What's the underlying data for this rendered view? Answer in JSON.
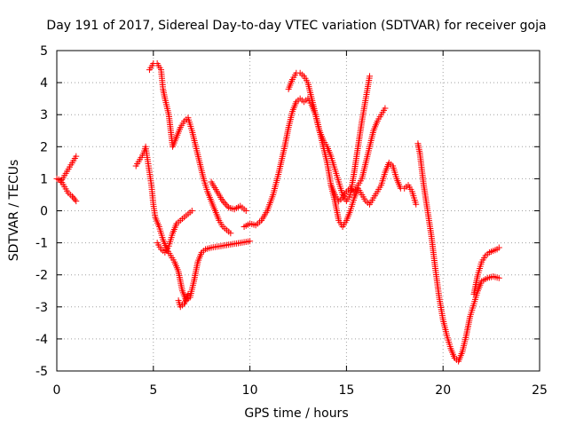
{
  "chart_data": {
    "type": "scatter",
    "title": "Day 191 of 2017, Sidereal Day-to-day VTEC variation (SDTVAR) for receiver goja",
    "xlabel": "GPS time / hours",
    "ylabel": "SDTVAR / TECUs",
    "xlim": [
      0,
      25
    ],
    "ylim": [
      -5,
      5
    ],
    "xticks": [
      "0",
      "5",
      "10",
      "15",
      "20",
      "25"
    ],
    "yticks": [
      "-5",
      "-4",
      "-3",
      "-2",
      "-1",
      "0",
      "1",
      "2",
      "3",
      "4",
      "5"
    ],
    "grid": true,
    "marker": "+",
    "color": "#ff0000",
    "series": [
      {
        "points": [
          [
            0,
            1.0
          ],
          [
            0.2,
            0.95
          ],
          [
            0.4,
            0.75
          ],
          [
            0.6,
            0.55
          ],
          [
            0.8,
            0.45
          ],
          [
            1.0,
            0.3
          ]
        ]
      },
      {
        "points": [
          [
            0.2,
            0.9
          ],
          [
            0.4,
            1.1
          ],
          [
            0.6,
            1.3
          ],
          [
            0.8,
            1.5
          ],
          [
            1.0,
            1.7
          ]
        ]
      },
      {
        "points": [
          [
            4.1,
            1.4
          ],
          [
            4.3,
            1.6
          ],
          [
            4.5,
            1.8
          ],
          [
            4.6,
            2.0
          ],
          [
            4.7,
            1.6
          ],
          [
            4.8,
            1.2
          ],
          [
            4.9,
            0.8
          ],
          [
            5.0,
            0.2
          ],
          [
            5.1,
            -0.2
          ],
          [
            5.3,
            -0.5
          ],
          [
            5.5,
            -0.9
          ],
          [
            5.7,
            -1.2
          ],
          [
            5.9,
            -1.4
          ],
          [
            6.1,
            -1.6
          ],
          [
            6.3,
            -1.9
          ],
          [
            6.5,
            -2.5
          ],
          [
            6.7,
            -2.8
          ],
          [
            6.9,
            -2.7
          ],
          [
            7.1,
            -2.2
          ],
          [
            7.3,
            -1.6
          ],
          [
            7.5,
            -1.3
          ],
          [
            7.7,
            -1.2
          ],
          [
            8.0,
            -1.15
          ],
          [
            8.5,
            -1.1
          ],
          [
            9.0,
            -1.05
          ],
          [
            9.5,
            -1.0
          ],
          [
            10.0,
            -0.95
          ]
        ]
      },
      {
        "points": [
          [
            4.8,
            4.4
          ],
          [
            5.0,
            4.6
          ],
          [
            5.2,
            4.6
          ],
          [
            5.4,
            4.4
          ],
          [
            5.5,
            3.8
          ],
          [
            5.6,
            3.5
          ],
          [
            5.8,
            3.0
          ],
          [
            5.9,
            2.5
          ],
          [
            6.0,
            2.0
          ],
          [
            6.2,
            2.3
          ],
          [
            6.4,
            2.6
          ],
          [
            6.6,
            2.8
          ],
          [
            6.8,
            2.9
          ],
          [
            7.0,
            2.5
          ],
          [
            7.2,
            2.0
          ],
          [
            7.4,
            1.5
          ],
          [
            7.6,
            1.0
          ],
          [
            7.8,
            0.6
          ],
          [
            8.0,
            0.3
          ],
          [
            8.2,
            0.0
          ],
          [
            8.4,
            -0.3
          ],
          [
            8.6,
            -0.5
          ],
          [
            8.8,
            -0.6
          ],
          [
            9.0,
            -0.7
          ]
        ]
      },
      {
        "points": [
          [
            5.2,
            -1.0
          ],
          [
            5.4,
            -1.2
          ],
          [
            5.6,
            -1.3
          ],
          [
            5.8,
            -1.1
          ],
          [
            6.0,
            -0.7
          ],
          [
            6.2,
            -0.4
          ],
          [
            6.4,
            -0.3
          ],
          [
            6.6,
            -0.2
          ],
          [
            6.8,
            -0.1
          ],
          [
            7.0,
            0.0
          ],
          [
            6.3,
            -2.8
          ],
          [
            6.4,
            -3.0
          ],
          [
            6.6,
            -2.9
          ],
          [
            6.8,
            -2.6
          ]
        ]
      },
      {
        "points": [
          [
            8.0,
            0.9
          ],
          [
            8.3,
            0.6
          ],
          [
            8.6,
            0.3
          ],
          [
            8.9,
            0.1
          ],
          [
            9.2,
            0.05
          ],
          [
            9.5,
            0.15
          ],
          [
            9.8,
            0.0
          ]
        ]
      },
      {
        "points": [
          [
            9.7,
            -0.5
          ],
          [
            10.0,
            -0.4
          ],
          [
            10.3,
            -0.45
          ],
          [
            10.6,
            -0.3
          ],
          [
            10.9,
            0.0
          ],
          [
            11.2,
            0.5
          ],
          [
            11.5,
            1.2
          ],
          [
            11.8,
            2.0
          ],
          [
            12.0,
            2.6
          ],
          [
            12.2,
            3.1
          ],
          [
            12.4,
            3.4
          ],
          [
            12.6,
            3.5
          ],
          [
            12.8,
            3.4
          ],
          [
            13.0,
            3.5
          ],
          [
            13.2,
            3.3
          ],
          [
            13.4,
            3.0
          ],
          [
            13.6,
            2.5
          ],
          [
            13.8,
            2.0
          ],
          [
            14.0,
            1.5
          ],
          [
            14.2,
            0.8
          ],
          [
            14.4,
            0.3
          ],
          [
            14.6,
            -0.3
          ],
          [
            14.8,
            -0.5
          ],
          [
            15.0,
            -0.3
          ],
          [
            15.2,
            0.0
          ],
          [
            15.4,
            0.4
          ],
          [
            15.6,
            0.7
          ],
          [
            15.8,
            0.5
          ],
          [
            16.0,
            0.3
          ],
          [
            16.2,
            0.2
          ],
          [
            16.4,
            0.4
          ],
          [
            16.6,
            0.6
          ],
          [
            16.8,
            0.8
          ],
          [
            17.0,
            1.2
          ],
          [
            17.2,
            1.5
          ],
          [
            17.4,
            1.4
          ],
          [
            17.6,
            1.0
          ],
          [
            17.8,
            0.7
          ],
          [
            18.0,
            0.7
          ],
          [
            18.2,
            0.8
          ],
          [
            18.4,
            0.6
          ],
          [
            18.6,
            0.2
          ]
        ]
      },
      {
        "points": [
          [
            12.0,
            3.8
          ],
          [
            12.2,
            4.1
          ],
          [
            12.4,
            4.3
          ],
          [
            12.6,
            4.3
          ],
          [
            12.8,
            4.2
          ],
          [
            13.0,
            4.0
          ],
          [
            13.2,
            3.5
          ],
          [
            13.4,
            3.0
          ],
          [
            13.6,
            2.5
          ],
          [
            13.8,
            2.2
          ],
          [
            14.0,
            2.0
          ],
          [
            14.2,
            1.7
          ],
          [
            14.4,
            1.3
          ],
          [
            14.6,
            0.9
          ],
          [
            14.8,
            0.5
          ],
          [
            15.0,
            0.3
          ],
          [
            15.2,
            0.5
          ],
          [
            15.4,
            1.2
          ],
          [
            15.6,
            2.0
          ],
          [
            15.8,
            2.8
          ],
          [
            16.0,
            3.5
          ],
          [
            16.2,
            4.2
          ]
        ]
      },
      {
        "points": [
          [
            14.2,
            0.8
          ],
          [
            14.4,
            0.5
          ],
          [
            14.6,
            0.3
          ],
          [
            14.8,
            0.4
          ],
          [
            15.0,
            0.6
          ],
          [
            15.2,
            0.7
          ],
          [
            15.4,
            0.6
          ],
          [
            15.6,
            0.8
          ],
          [
            15.8,
            1.0
          ],
          [
            16.0,
            1.5
          ],
          [
            16.2,
            2.0
          ],
          [
            16.4,
            2.5
          ],
          [
            16.6,
            2.8
          ],
          [
            16.8,
            3.0
          ],
          [
            17.0,
            3.2
          ]
        ]
      },
      {
        "points": [
          [
            18.7,
            2.1
          ],
          [
            18.8,
            1.8
          ],
          [
            18.9,
            1.3
          ],
          [
            19.0,
            0.8
          ],
          [
            19.2,
            0.0
          ],
          [
            19.4,
            -0.8
          ],
          [
            19.6,
            -1.8
          ],
          [
            19.8,
            -2.7
          ],
          [
            20.0,
            -3.4
          ],
          [
            20.2,
            -3.9
          ],
          [
            20.4,
            -4.3
          ],
          [
            20.6,
            -4.6
          ],
          [
            20.8,
            -4.7
          ],
          [
            21.0,
            -4.4
          ],
          [
            21.2,
            -3.9
          ],
          [
            21.4,
            -3.3
          ],
          [
            21.6,
            -2.9
          ],
          [
            21.8,
            -2.5
          ],
          [
            22.0,
            -2.2
          ],
          [
            22.3,
            -2.1
          ],
          [
            22.6,
            -2.05
          ],
          [
            22.9,
            -2.1
          ]
        ]
      },
      {
        "points": [
          [
            21.6,
            -2.6
          ],
          [
            21.8,
            -2.0
          ],
          [
            22.0,
            -1.6
          ],
          [
            22.2,
            -1.4
          ],
          [
            22.4,
            -1.3
          ],
          [
            22.6,
            -1.25
          ],
          [
            22.8,
            -1.2
          ],
          [
            22.9,
            -1.15
          ]
        ]
      }
    ]
  }
}
